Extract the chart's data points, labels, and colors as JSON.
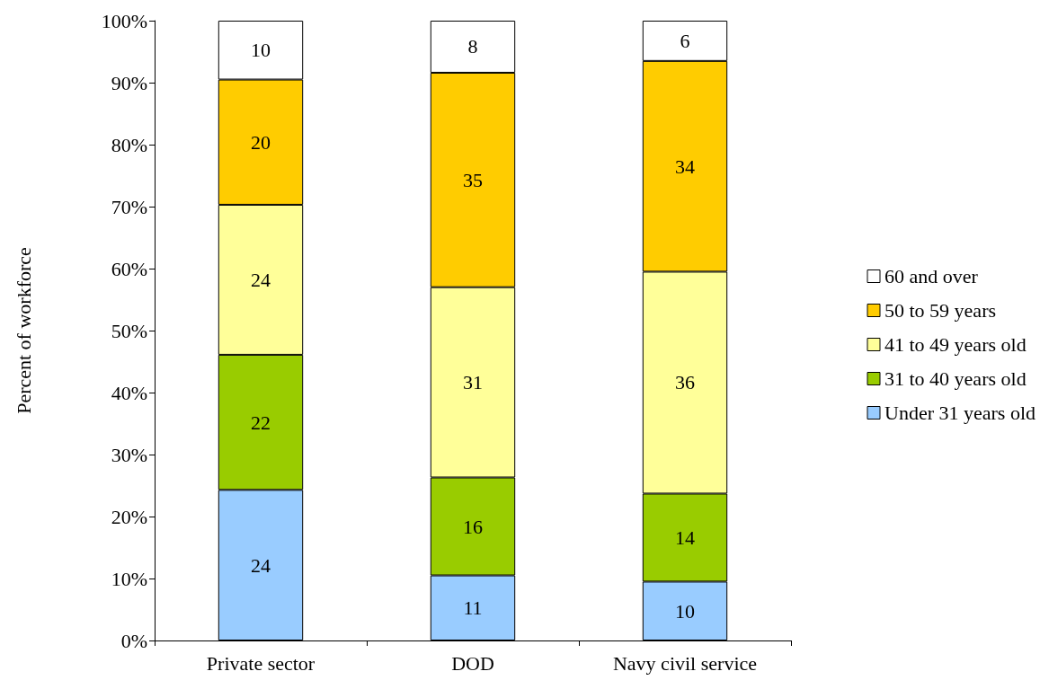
{
  "chart_data": {
    "type": "bar",
    "stacked": true,
    "ylabel": "Percent of workforce",
    "categories": [
      "Private sector",
      "DOD",
      "Navy civil service"
    ],
    "series": [
      {
        "name": "Under 31 years old",
        "color": "#99ccff",
        "values": [
          24.3,
          10.5,
          9.5
        ],
        "value_labels": [
          "24",
          "11",
          "10"
        ]
      },
      {
        "name": "31 to 40 years old",
        "color": "#99cc00",
        "values": [
          21.8,
          15.8,
          14.2
        ],
        "value_labels": [
          "22",
          "16",
          "14"
        ]
      },
      {
        "name": "41 to 49 years old",
        "color": "#ffff99",
        "values": [
          24.2,
          30.7,
          35.8
        ],
        "value_labels": [
          "24",
          "31",
          "36"
        ]
      },
      {
        "name": "50 to 59 years",
        "color": "#ffcc00",
        "values": [
          20.2,
          34.6,
          34
        ],
        "value_labels": [
          "20",
          "35",
          "34"
        ]
      },
      {
        "name": "60 and over",
        "color": "#ffffff",
        "values": [
          9.5,
          8.4,
          6.5
        ],
        "value_labels": [
          "10",
          "8",
          "6"
        ]
      }
    ],
    "ylim": [
      0,
      100
    ],
    "yticks": [
      {
        "value": 0,
        "label": "0%"
      },
      {
        "value": 10,
        "label": "10%"
      },
      {
        "value": 20,
        "label": "20%"
      },
      {
        "value": 30,
        "label": "30%"
      },
      {
        "value": 40,
        "label": "40%"
      },
      {
        "value": 50,
        "label": "50%"
      },
      {
        "value": 60,
        "label": "60%"
      },
      {
        "value": 70,
        "label": "70%"
      },
      {
        "value": 80,
        "label": "80%"
      },
      {
        "value": 90,
        "label": "90%"
      },
      {
        "value": 100,
        "label": "100%"
      }
    ],
    "grid": false,
    "legend": "right"
  }
}
